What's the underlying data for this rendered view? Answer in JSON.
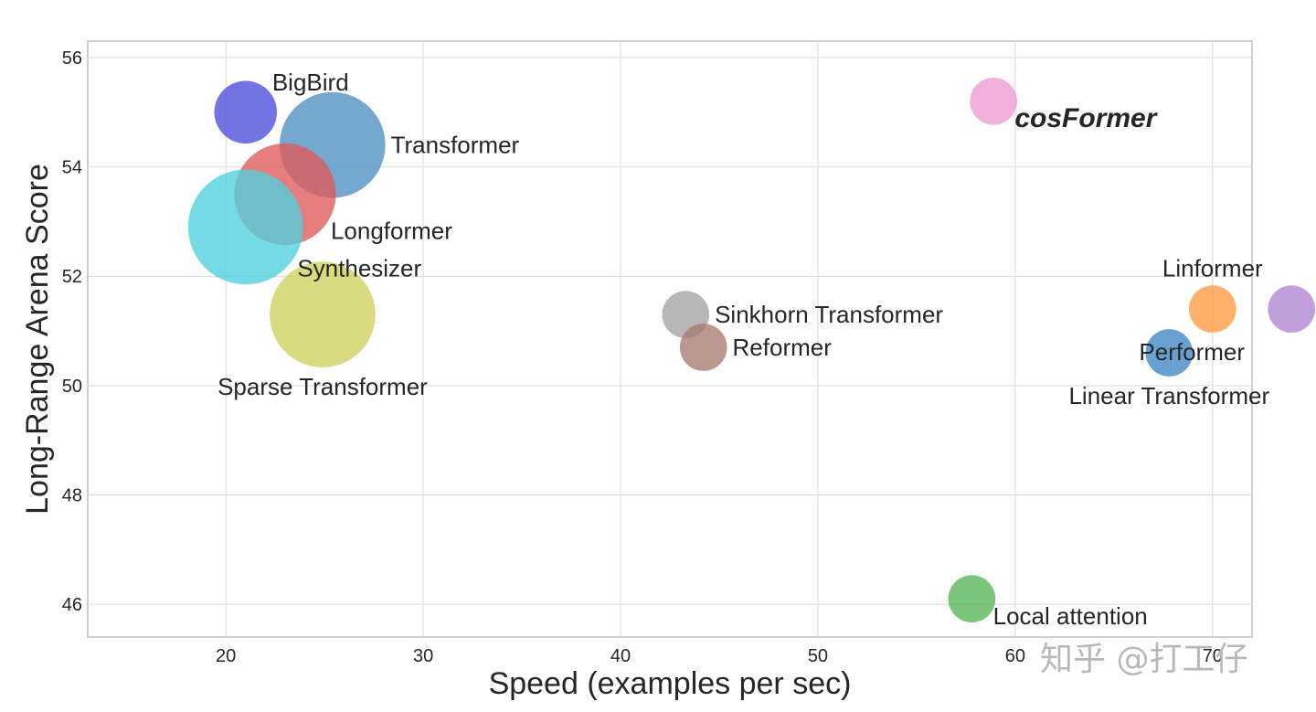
{
  "chart_data": {
    "type": "scatter",
    "title": "",
    "xlabel": "Speed (examples per sec)",
    "ylabel": "Long-Range Arena Score",
    "xlim": [
      13,
      72
    ],
    "ylim": [
      45.4,
      56.3
    ],
    "xticks": [
      20,
      30,
      40,
      50,
      60,
      70
    ],
    "xtick_labels": [
      "20",
      "30",
      "40",
      "50",
      "60",
      "70"
    ],
    "yticks": [
      46,
      48,
      50,
      52,
      54,
      56
    ],
    "ytick_labels": [
      "46",
      "48",
      "50",
      "52",
      "54",
      "56"
    ],
    "grid": true,
    "points": [
      {
        "label": "BigBird",
        "x": 21.0,
        "y": 55.0,
        "size": 6.1,
        "color": "#4b4bdb",
        "label_pos": "upper-right"
      },
      {
        "label": "Transformer",
        "x": 25.4,
        "y": 54.4,
        "size": 10.3,
        "color": "#4e8fc0",
        "label_pos": "right"
      },
      {
        "label": "Longformer",
        "x": 23.0,
        "y": 53.5,
        "size": 9.9,
        "color": "#e05a5a",
        "label_pos": "lower-right"
      },
      {
        "label": "Synthesizer",
        "x": 21.0,
        "y": 52.9,
        "size": 11.2,
        "color": "#4dd0df",
        "label_pos": "lower-right"
      },
      {
        "label": "Sparse Transformer",
        "x": 24.9,
        "y": 51.3,
        "size": 10.3,
        "color": "#cfcf5c",
        "label_pos": "below"
      },
      {
        "label": "Sinkhorn Transformer",
        "x": 43.3,
        "y": 51.3,
        "size": 4.6,
        "color": "#a3a3a3",
        "label_pos": "right"
      },
      {
        "label": "Reformer",
        "x": 44.2,
        "y": 50.7,
        "size": 4.6,
        "color": "#a77a70",
        "label_pos": "right"
      },
      {
        "label": "cosFormer",
        "x": 58.9,
        "y": 55.2,
        "size": 4.6,
        "color": "#ee9bd3",
        "label_pos": "lower-right",
        "highlight": true,
        "label_color": "#c03030"
      },
      {
        "label": "Local attention",
        "x": 57.8,
        "y": 46.1,
        "size": 4.6,
        "color": "#55b555",
        "label_pos": "lower-right"
      },
      {
        "label": "Linformer",
        "x": 70.0,
        "y": 51.4,
        "size": 4.6,
        "color": "#ff9a40",
        "label_pos": "above"
      },
      {
        "label": "Performer",
        "x": 74.0,
        "y": 51.4,
        "size": 4.6,
        "color": "#b084d4",
        "label_pos": "below"
      },
      {
        "label": "Linear Transformer",
        "x": 67.8,
        "y": 50.6,
        "size": 4.6,
        "color": "#3d86c2",
        "label_pos": "below"
      }
    ]
  },
  "watermark": "知乎 @打工仔"
}
